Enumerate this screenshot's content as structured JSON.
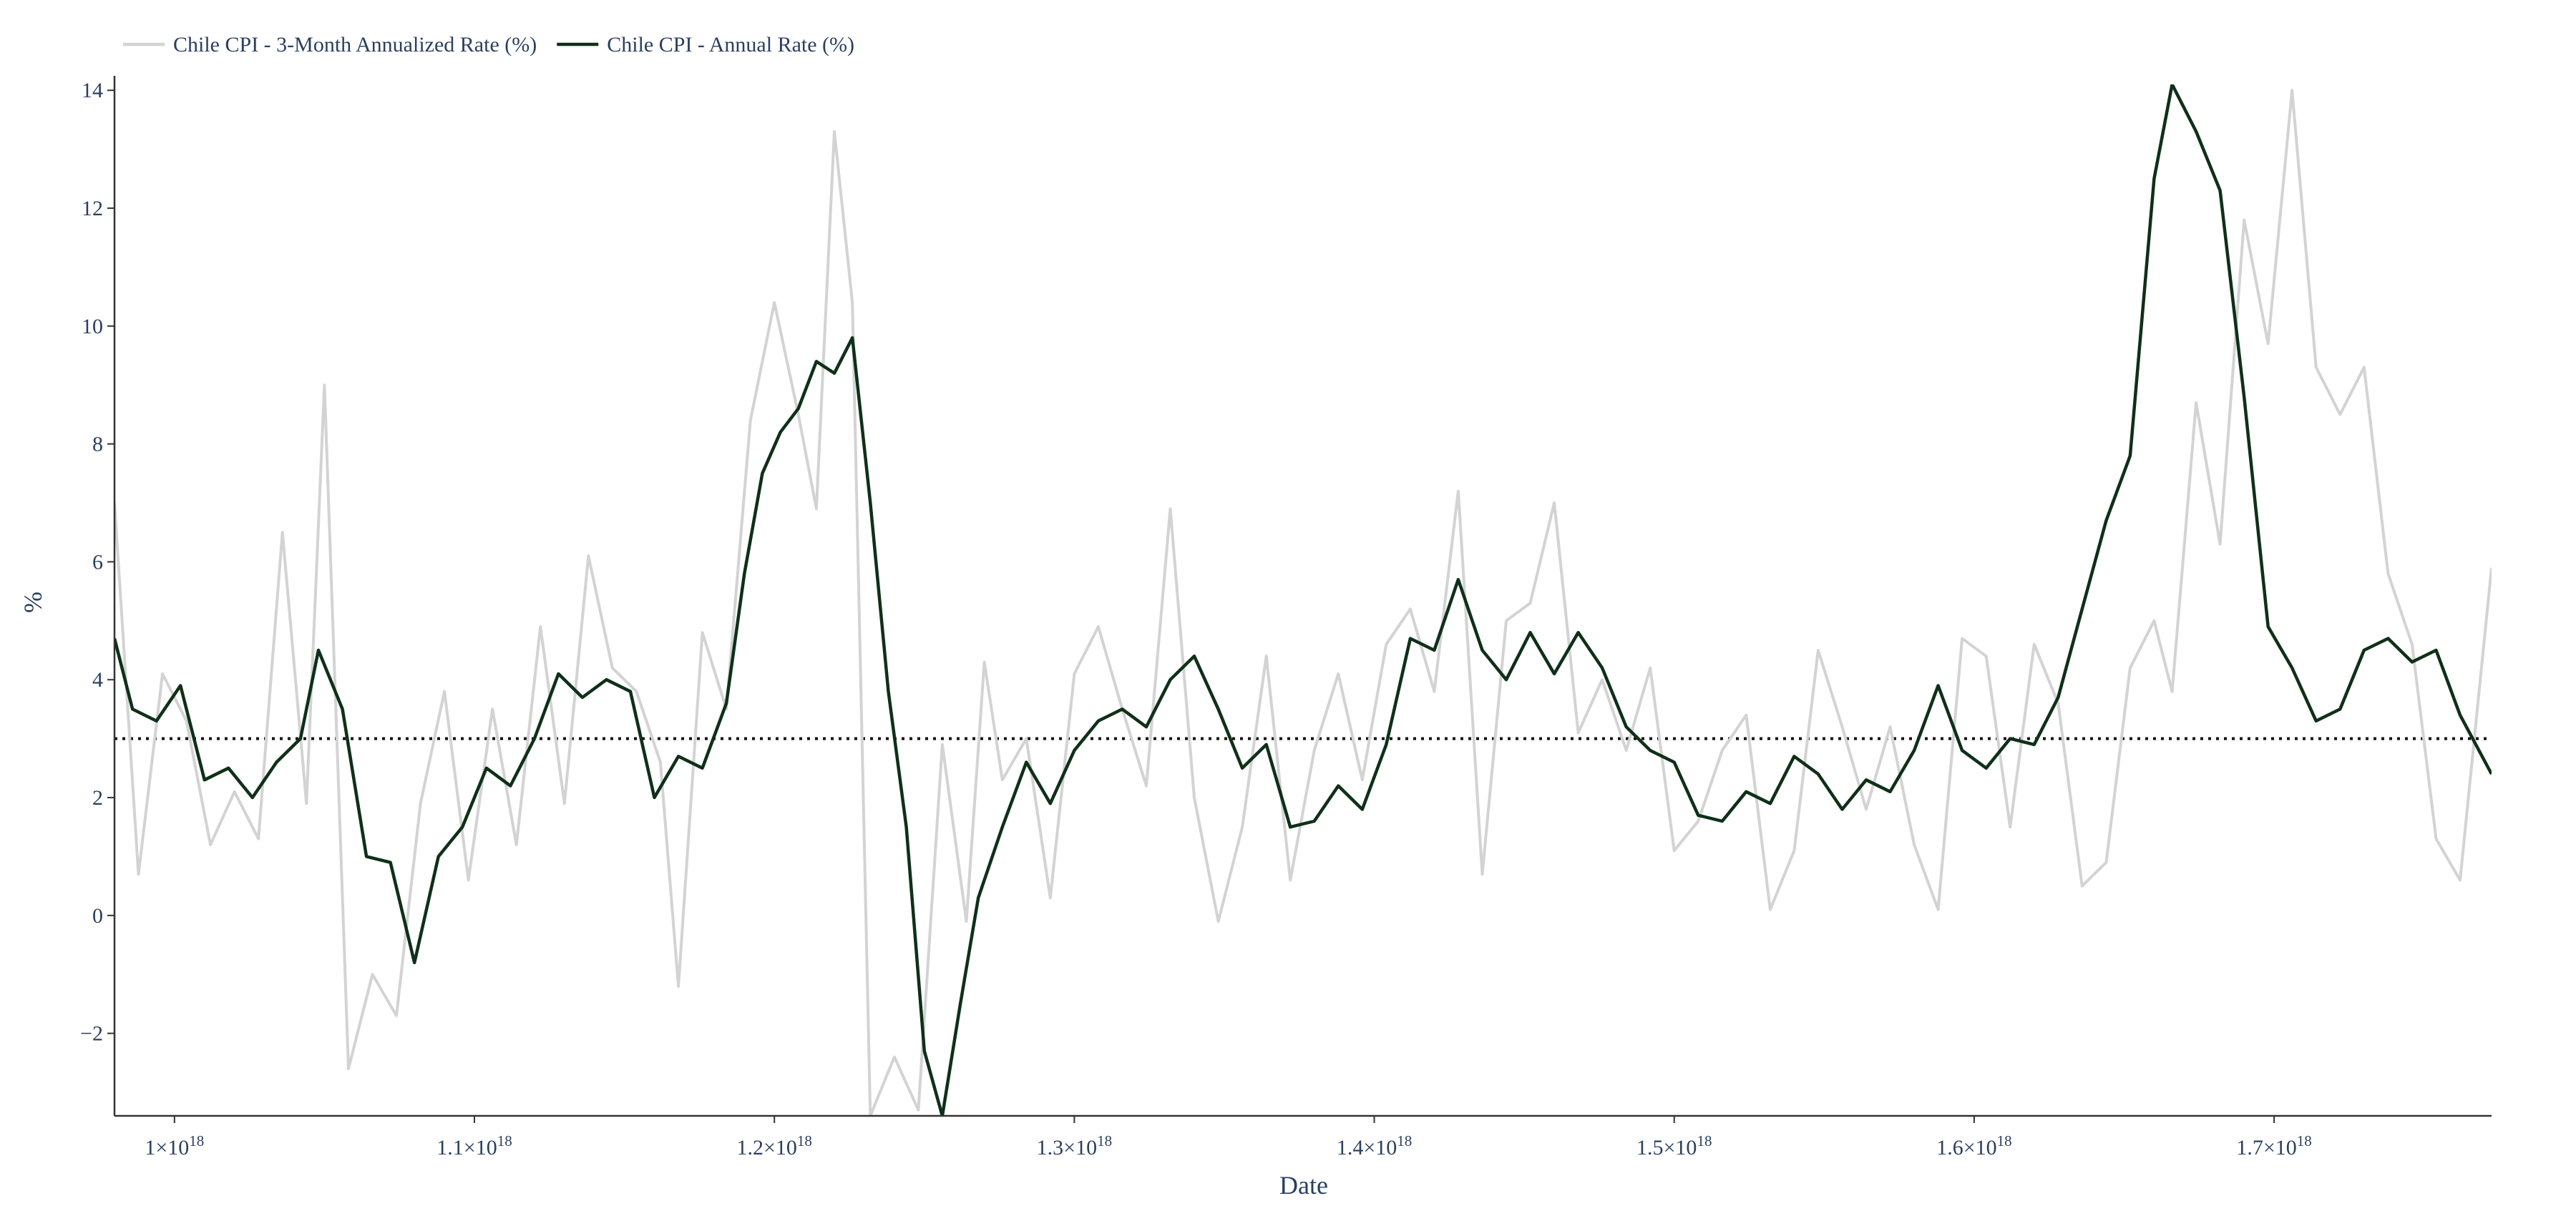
{
  "chart_data": {
    "type": "line",
    "xlabel": "Date",
    "ylabel": "%",
    "xlim": [
      9.8e+17,
      1.7725e+18
    ],
    "ylim": [
      -3.4,
      14.1
    ],
    "x_ticks": [
      {
        "value": 1e+18,
        "mant": "1",
        "exp": "18"
      },
      {
        "value": 1.1e+18,
        "mant": "1.1",
        "exp": "18"
      },
      {
        "value": 1.2e+18,
        "mant": "1.2",
        "exp": "18"
      },
      {
        "value": 1.3e+18,
        "mant": "1.3",
        "exp": "18"
      },
      {
        "value": 1.4e+18,
        "mant": "1.4",
        "exp": "18"
      },
      {
        "value": 1.5e+18,
        "mant": "1.5",
        "exp": "18"
      },
      {
        "value": 1.6e+18,
        "mant": "1.6",
        "exp": "18"
      },
      {
        "value": 1.7e+18,
        "mant": "1.7",
        "exp": "18"
      }
    ],
    "y_ticks": [
      {
        "value": -2,
        "label": "−2"
      },
      {
        "value": 0,
        "label": "0"
      },
      {
        "value": 2,
        "label": "2"
      },
      {
        "value": 4,
        "label": "4"
      },
      {
        "value": 6,
        "label": "6"
      },
      {
        "value": 8,
        "label": "8"
      },
      {
        "value": 10,
        "label": "10"
      },
      {
        "value": 12,
        "label": "12"
      },
      {
        "value": 14,
        "label": "14"
      }
    ],
    "reference_line": {
      "y": 3,
      "style": "dotted",
      "color": "#111111"
    },
    "grid": false,
    "legend_position": "top-left",
    "series": [
      {
        "name": "Chile CPI - 3-Month Annualized Rate (%)",
        "color": "#d3d3d3",
        "x": [
          9.8e+17,
          9.88e+17,
          9.96e+17,
          1.004e+18,
          1.012e+18,
          1.02e+18,
          1.028e+18,
          1.036e+18,
          1.044e+18,
          1.05e+18,
          1.058e+18,
          1.066e+18,
          1.074e+18,
          1.082e+18,
          1.09e+18,
          1.098e+18,
          1.106e+18,
          1.114e+18,
          1.122e+18,
          1.13e+18,
          1.138e+18,
          1.146e+18,
          1.154e+18,
          1.162e+18,
          1.168e+18,
          1.176e+18,
          1.184e+18,
          1.192e+18,
          1.2e+18,
          1.208e+18,
          1.214e+18,
          1.22e+18,
          1.226e+18,
          1.232e+18,
          1.24e+18,
          1.248e+18,
          1.256e+18,
          1.264e+18,
          1.27e+18,
          1.276e+18,
          1.284e+18,
          1.292e+18,
          1.3e+18,
          1.308e+18,
          1.316e+18,
          1.324e+18,
          1.332e+18,
          1.34e+18,
          1.348e+18,
          1.356e+18,
          1.364e+18,
          1.372e+18,
          1.38e+18,
          1.388e+18,
          1.396e+18,
          1.404e+18,
          1.412e+18,
          1.42e+18,
          1.428e+18,
          1.436e+18,
          1.444e+18,
          1.452e+18,
          1.46e+18,
          1.468e+18,
          1.476e+18,
          1.484e+18,
          1.492e+18,
          1.5e+18,
          1.508e+18,
          1.516e+18,
          1.524e+18,
          1.532e+18,
          1.54e+18,
          1.548e+18,
          1.556e+18,
          1.564e+18,
          1.572e+18,
          1.58e+18,
          1.588e+18,
          1.596e+18,
          1.604e+18,
          1.612e+18,
          1.62e+18,
          1.628e+18,
          1.636e+18,
          1.644e+18,
          1.652e+18,
          1.66e+18,
          1.666e+18,
          1.674e+18,
          1.682e+18,
          1.69e+18,
          1.698e+18,
          1.706e+18,
          1.714e+18,
          1.722e+18,
          1.73e+18,
          1.738e+18,
          1.746e+18,
          1.754e+18,
          1.762e+18,
          1.7725e+18
        ],
        "y": [
          7.0,
          0.7,
          4.1,
          3.3,
          1.2,
          2.1,
          1.3,
          6.5,
          1.9,
          9.0,
          -2.6,
          -1.0,
          -1.7,
          1.9,
          3.8,
          0.6,
          3.5,
          1.2,
          4.9,
          1.9,
          6.1,
          4.2,
          3.8,
          2.6,
          -1.2,
          4.8,
          3.5,
          8.4,
          10.4,
          8.5,
          6.9,
          13.3,
          10.4,
          -3.4,
          -2.4,
          -3.3,
          2.9,
          -0.1,
          4.3,
          2.3,
          3.0,
          0.3,
          4.1,
          4.9,
          3.5,
          2.2,
          6.9,
          2.0,
          -0.1,
          1.5,
          4.4,
          0.6,
          2.8,
          4.1,
          2.3,
          4.6,
          5.2,
          3.8,
          7.2,
          0.7,
          5.0,
          5.3,
          7.0,
          3.1,
          4.0,
          2.8,
          4.2,
          1.1,
          1.6,
          2.8,
          3.4,
          0.1,
          1.1,
          4.5,
          3.2,
          1.8,
          3.2,
          1.2,
          0.1,
          4.7,
          4.4,
          1.5,
          4.6,
          3.6,
          0.5,
          0.9,
          4.2,
          5.0,
          3.8,
          8.7,
          6.3,
          11.8,
          9.7,
          14.0,
          9.3,
          8.5,
          9.3,
          5.8,
          4.6,
          1.3,
          0.6,
          5.9
        ]
      },
      {
        "name": "Chile CPI - Annual Rate (%)",
        "color": "#0f3018",
        "x": [
          9.8e+17,
          9.86e+17,
          9.94e+17,
          1.002e+18,
          1.01e+18,
          1.018e+18,
          1.026e+18,
          1.034e+18,
          1.042e+18,
          1.048e+18,
          1.056e+18,
          1.064e+18,
          1.072e+18,
          1.08e+18,
          1.088e+18,
          1.096e+18,
          1.104e+18,
          1.112e+18,
          1.12e+18,
          1.128e+18,
          1.136e+18,
          1.144e+18,
          1.152e+18,
          1.16e+18,
          1.168e+18,
          1.176e+18,
          1.184e+18,
          1.19e+18,
          1.196e+18,
          1.202e+18,
          1.208e+18,
          1.214e+18,
          1.22e+18,
          1.226e+18,
          1.232e+18,
          1.238e+18,
          1.244e+18,
          1.25e+18,
          1.256e+18,
          1.262e+18,
          1.268e+18,
          1.276e+18,
          1.284e+18,
          1.292e+18,
          1.3e+18,
          1.308e+18,
          1.316e+18,
          1.324e+18,
          1.332e+18,
          1.34e+18,
          1.348e+18,
          1.356e+18,
          1.364e+18,
          1.372e+18,
          1.38e+18,
          1.388e+18,
          1.396e+18,
          1.404e+18,
          1.412e+18,
          1.42e+18,
          1.428e+18,
          1.436e+18,
          1.444e+18,
          1.452e+18,
          1.46e+18,
          1.468e+18,
          1.476e+18,
          1.484e+18,
          1.492e+18,
          1.5e+18,
          1.508e+18,
          1.516e+18,
          1.524e+18,
          1.532e+18,
          1.54e+18,
          1.548e+18,
          1.556e+18,
          1.564e+18,
          1.572e+18,
          1.58e+18,
          1.588e+18,
          1.596e+18,
          1.604e+18,
          1.612e+18,
          1.62e+18,
          1.628e+18,
          1.636e+18,
          1.644e+18,
          1.652e+18,
          1.66e+18,
          1.666e+18,
          1.674e+18,
          1.682e+18,
          1.69e+18,
          1.698e+18,
          1.706e+18,
          1.714e+18,
          1.722e+18,
          1.73e+18,
          1.738e+18,
          1.746e+18,
          1.754e+18,
          1.762e+18,
          1.7725e+18
        ],
        "y": [
          4.7,
          3.5,
          3.3,
          3.9,
          2.3,
          2.5,
          2.0,
          2.6,
          3.0,
          4.5,
          3.5,
          1.0,
          0.9,
          -0.8,
          1.0,
          1.5,
          2.5,
          2.2,
          3.0,
          4.1,
          3.7,
          4.0,
          3.8,
          2.0,
          2.7,
          2.5,
          3.6,
          5.8,
          7.5,
          8.2,
          8.6,
          9.4,
          9.2,
          9.8,
          7.0,
          3.8,
          1.5,
          -2.3,
          -3.4,
          -1.5,
          0.3,
          1.5,
          2.6,
          1.9,
          2.8,
          3.3,
          3.5,
          3.2,
          4.0,
          4.4,
          3.5,
          2.5,
          2.9,
          1.5,
          1.6,
          2.2,
          1.8,
          2.9,
          4.7,
          4.5,
          5.7,
          4.5,
          4.0,
          4.8,
          4.1,
          4.8,
          4.2,
          3.2,
          2.8,
          2.6,
          1.7,
          1.6,
          2.1,
          1.9,
          2.7,
          2.4,
          1.8,
          2.3,
          2.1,
          2.8,
          3.9,
          2.8,
          2.5,
          3.0,
          2.9,
          3.7,
          5.2,
          6.7,
          7.8,
          12.5,
          14.1,
          13.3,
          12.3,
          8.8,
          4.9,
          4.2,
          3.3,
          3.5,
          4.5,
          4.7,
          4.3,
          4.5,
          3.4,
          2.4
        ]
      }
    ]
  }
}
